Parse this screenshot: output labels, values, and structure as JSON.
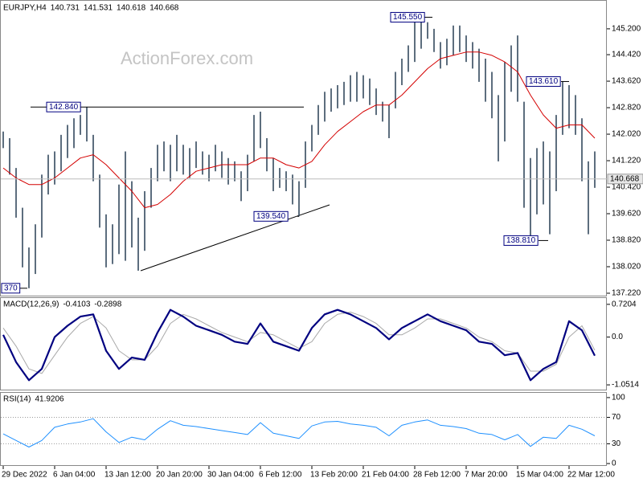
{
  "header": {
    "symbol": "EURJPY,H4",
    "ohlc": [
      140.731,
      141.531,
      140.618,
      140.668
    ]
  },
  "watermark": "ActionForex.com",
  "chart_data": [
    {
      "type": "ohlc",
      "color": "#34495e",
      "xlim": [
        -0.5,
        93.875
      ],
      "xticks": [
        {
          "value": 0,
          "label": "29 Dec 2022"
        },
        {
          "value": 8,
          "label": "6 Jan 04:00"
        },
        {
          "value": 16,
          "label": "13 Jan 12:00"
        },
        {
          "value": 24,
          "label": "20 Jan 20:00"
        },
        {
          "value": 32,
          "label": "30 Jan 04:00"
        },
        {
          "value": 40,
          "label": "6 Feb 12:00"
        },
        {
          "value": 48,
          "label": "13 Feb 20:00"
        },
        {
          "value": 56,
          "label": "21 Feb 04:00"
        },
        {
          "value": 64,
          "label": "28 Feb 12:00"
        },
        {
          "value": 72,
          "label": "7 Mar 20:00"
        },
        {
          "value": 80,
          "label": "15 Mar 04:00"
        },
        {
          "value": 88,
          "label": "22 Mar 12:00"
        }
      ],
      "ylim": [
        137.147,
        146.046
      ],
      "yticks": [
        {
          "value": 145.2,
          "label": "145.200"
        },
        {
          "value": 144.42,
          "label": "144.420"
        },
        {
          "value": 143.62,
          "label": "143.620"
        },
        {
          "value": 142.82,
          "label": "142.820"
        },
        {
          "value": 142.02,
          "label": "142.020"
        },
        {
          "value": 141.22,
          "label": "141.220"
        },
        {
          "value": 140.42,
          "label": "140.420"
        },
        {
          "value": 139.62,
          "label": "139.620"
        },
        {
          "value": 138.82,
          "label": "138.820"
        },
        {
          "value": 138.02,
          "label": "138.020"
        },
        {
          "value": 137.22,
          "label": "137.220"
        }
      ],
      "last_price": 140.668,
      "high": [
        142.1,
        141.9,
        141.0,
        139.8,
        138.6,
        139.3,
        140.8,
        141.4,
        141.5,
        142.0,
        142.3,
        142.5,
        142.6,
        142.84,
        142.0,
        140.8,
        139.6,
        139.3,
        140.5,
        141.5,
        140.6,
        139.5,
        140.3,
        141.0,
        141.7,
        141.8,
        141.7,
        142.0,
        141.7,
        141.6,
        141.8,
        141.5,
        141.4,
        141.7,
        141.5,
        141.3,
        141.2,
        140.9,
        141.4,
        142.6,
        142.7,
        141.9,
        141.3,
        141.0,
        140.9,
        140.8,
        140.6,
        141.8,
        142.3,
        142.9,
        143.3,
        143.4,
        143.5,
        143.6,
        143.8,
        143.9,
        143.8,
        143.7,
        143.4,
        143.0,
        142.9,
        143.9,
        144.3,
        144.7,
        145.55,
        145.5,
        145.4,
        145.2,
        144.8,
        144.9,
        145.3,
        145.3,
        145.0,
        144.8,
        144.6,
        144.3,
        143.9,
        143.2,
        144.2,
        144.7,
        145.0,
        143.0,
        141.3,
        141.6,
        141.8,
        141.5,
        142.6,
        143.61,
        143.5,
        143.2,
        142.5,
        141.2,
        141.5
      ],
      "low": [
        141.6,
        140.8,
        139.5,
        138.0,
        137.37,
        137.8,
        138.9,
        140.2,
        140.5,
        140.9,
        141.3,
        141.6,
        142.0,
        141.8,
        140.6,
        139.2,
        138.0,
        138.1,
        138.4,
        138.2,
        138.6,
        137.9,
        138.5,
        139.8,
        140.6,
        140.9,
        140.6,
        140.9,
        140.8,
        140.7,
        141.0,
        140.8,
        140.6,
        140.9,
        140.7,
        140.5,
        140.6,
        140.0,
        140.3,
        141.2,
        141.6,
        140.9,
        140.3,
        140.4,
        140.3,
        139.9,
        139.54,
        140.4,
        141.5,
        142.0,
        142.4,
        142.7,
        142.8,
        142.9,
        143.0,
        143.0,
        143.1,
        142.9,
        142.6,
        142.4,
        141.9,
        142.8,
        143.5,
        143.9,
        144.2,
        144.6,
        144.9,
        144.5,
        144.0,
        144.1,
        144.4,
        144.5,
        144.2,
        144.0,
        143.6,
        143.0,
        142.5,
        141.2,
        141.8,
        143.3,
        143.0,
        139.8,
        138.81,
        139.6,
        139.9,
        139.0,
        140.3,
        142.0,
        142.2,
        142.0,
        140.6,
        139.0,
        140.4
      ],
      "series": [
        {
          "color": "#d40000",
          "x": [
            0,
            2,
            4,
            6,
            8,
            10,
            12,
            14,
            16,
            18,
            20,
            22,
            24,
            26,
            28,
            30,
            32,
            34,
            36,
            38,
            40,
            42,
            44,
            46,
            48,
            50,
            52,
            54,
            56,
            58,
            60,
            62,
            64,
            66,
            68,
            70,
            72,
            74,
            76,
            78,
            80,
            82,
            84,
            86,
            88,
            90,
            92
          ],
          "values": [
            141.0,
            140.7,
            140.5,
            140.5,
            140.7,
            141.0,
            141.3,
            141.4,
            141.1,
            140.7,
            140.3,
            139.8,
            139.9,
            140.2,
            140.6,
            140.9,
            141.0,
            141.1,
            141.1,
            141.1,
            141.3,
            141.3,
            141.1,
            141.0,
            141.2,
            141.7,
            142.1,
            142.4,
            142.7,
            142.9,
            142.9,
            143.2,
            143.6,
            144.0,
            144.3,
            144.4,
            144.5,
            144.5,
            144.4,
            144.2,
            143.9,
            143.2,
            142.6,
            142.2,
            142.3,
            142.3,
            141.9
          ]
        }
      ],
      "annotations": [
        {
          "label": "142.840",
          "value": 142.84
        },
        {
          "label": "139.540",
          "value": 139.54
        },
        {
          "label": "145.550",
          "value": 145.55
        },
        {
          "label": "143.610",
          "value": 143.61
        },
        {
          "label": "138.810",
          "value": 138.81
        },
        {
          "label": "370",
          "value": 137.37
        }
      ]
    },
    {
      "type": "macd",
      "title": "MACD(12,26,9)",
      "current": [
        -0.4103,
        -0.2898
      ],
      "ylim": [
        -1.156,
        0.859
      ],
      "yticks": [
        0.7204,
        {
          "value": 0,
          "label": "0.0"
        },
        -1.0514
      ],
      "series": [
        {
          "color": "#000080",
          "x": [
            0,
            2,
            4,
            6,
            8,
            10,
            12,
            14,
            16,
            18,
            20,
            22,
            24,
            26,
            28,
            30,
            32,
            34,
            36,
            38,
            40,
            42,
            44,
            46,
            48,
            50,
            52,
            54,
            56,
            58,
            60,
            62,
            64,
            66,
            68,
            70,
            72,
            74,
            76,
            78,
            80,
            82,
            84,
            86,
            88,
            90,
            92
          ],
          "values": [
            0.05,
            -0.55,
            -0.95,
            -0.7,
            0.0,
            0.25,
            0.45,
            0.5,
            -0.3,
            -0.7,
            -0.45,
            -0.5,
            0.1,
            0.6,
            0.45,
            0.25,
            0.15,
            0.05,
            -0.1,
            -0.15,
            0.3,
            -0.1,
            -0.2,
            -0.3,
            0.2,
            0.5,
            0.6,
            0.5,
            0.35,
            0.2,
            -0.05,
            0.2,
            0.35,
            0.5,
            0.35,
            0.25,
            0.15,
            -0.1,
            -0.15,
            -0.4,
            -0.35,
            -0.95,
            -0.7,
            -0.55,
            0.35,
            0.15,
            -0.41
          ]
        },
        {
          "color": "#a9a9a9",
          "x": [
            0,
            2,
            4,
            6,
            8,
            10,
            12,
            14,
            16,
            18,
            20,
            22,
            24,
            26,
            28,
            30,
            32,
            34,
            36,
            38,
            40,
            42,
            44,
            46,
            48,
            50,
            52,
            54,
            56,
            58,
            60,
            62,
            64,
            66,
            68,
            70,
            72,
            74,
            76,
            78,
            80,
            82,
            84,
            86,
            88,
            90,
            92
          ],
          "values": [
            0.2,
            -0.2,
            -0.7,
            -0.8,
            -0.4,
            0.0,
            0.3,
            0.45,
            0.2,
            -0.3,
            -0.5,
            -0.5,
            -0.2,
            0.3,
            0.5,
            0.4,
            0.25,
            0.1,
            0.0,
            -0.1,
            0.1,
            0.05,
            -0.1,
            -0.25,
            -0.1,
            0.3,
            0.5,
            0.55,
            0.45,
            0.3,
            0.05,
            0.05,
            0.2,
            0.4,
            0.4,
            0.3,
            0.2,
            0.0,
            -0.1,
            -0.3,
            -0.35,
            -0.75,
            -0.75,
            -0.6,
            0.0,
            0.25,
            -0.29
          ]
        }
      ]
    },
    {
      "type": "rsi",
      "title": "RSI(14)",
      "current": 41.9206,
      "ylim": [
        -2.4,
        107.2
      ],
      "yticks": [
        100,
        70,
        30,
        0
      ],
      "dotted_levels": true,
      "series": [
        {
          "color": "#1e90ff",
          "x": [
            0,
            2,
            4,
            6,
            8,
            10,
            12,
            14,
            16,
            18,
            20,
            22,
            24,
            26,
            28,
            30,
            32,
            34,
            36,
            38,
            40,
            42,
            44,
            46,
            48,
            50,
            52,
            54,
            56,
            58,
            60,
            62,
            64,
            66,
            68,
            70,
            72,
            74,
            76,
            78,
            80,
            82,
            84,
            86,
            88,
            90,
            92
          ],
          "values": [
            45,
            35,
            25,
            35,
            55,
            60,
            63,
            68,
            48,
            32,
            40,
            36,
            52,
            65,
            58,
            56,
            53,
            50,
            47,
            44,
            62,
            46,
            42,
            38,
            57,
            63,
            64,
            60,
            58,
            55,
            42,
            58,
            63,
            66,
            58,
            56,
            53,
            46,
            44,
            36,
            44,
            26,
            40,
            38,
            58,
            52,
            42
          ]
        }
      ]
    }
  ]
}
